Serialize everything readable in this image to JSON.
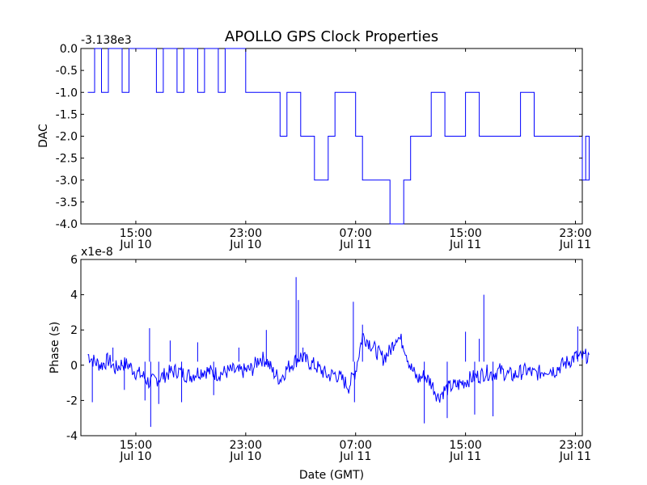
{
  "chart_data": [
    {
      "type": "line",
      "title": "APOLLO GPS Clock Properties",
      "ylabel": "DAC",
      "offset_label": "-3.138e3",
      "ylim": [
        -4.0,
        0.0
      ],
      "yticks": [
        "0.0",
        "-0.5",
        "-1.0",
        "-1.5",
        "-2.0",
        "-2.5",
        "-3.0",
        "-3.5",
        "-4.0"
      ],
      "xticks": [
        {
          "time": "15:00",
          "date": "Jul 10"
        },
        {
          "time": "23:00",
          "date": "Jul 10"
        },
        {
          "time": "07:00",
          "date": "Jul 11"
        },
        {
          "time": "15:00",
          "date": "Jul 11"
        },
        {
          "time": "23:00",
          "date": "Jul 11"
        }
      ],
      "series": [
        {
          "color": "#0000ff",
          "points": [
            [
              "Jul 10 11:30",
              -1.0
            ],
            [
              "Jul 10 12:00",
              0.0
            ],
            [
              "Jul 10 12:30",
              -1.0
            ],
            [
              "Jul 10 13:00",
              0.0
            ],
            [
              "Jul 10 14:00",
              -1.0
            ],
            [
              "Jul 10 14:30",
              0.0
            ],
            [
              "Jul 10 16:30",
              -1.0
            ],
            [
              "Jul 10 17:00",
              0.0
            ],
            [
              "Jul 10 18:00",
              -1.0
            ],
            [
              "Jul 10 18:30",
              0.0
            ],
            [
              "Jul 10 19:30",
              -1.0
            ],
            [
              "Jul 10 20:00",
              0.0
            ],
            [
              "Jul 10 21:00",
              -1.0
            ],
            [
              "Jul 10 21:30",
              0.0
            ],
            [
              "Jul 10 23:00",
              -1.0
            ],
            [
              "Jul 11 01:30",
              -2.0
            ],
            [
              "Jul 11 02:00",
              -1.0
            ],
            [
              "Jul 11 03:00",
              -2.0
            ],
            [
              "Jul 11 04:00",
              -3.0
            ],
            [
              "Jul 11 05:00",
              -2.0
            ],
            [
              "Jul 11 05:30",
              -1.0
            ],
            [
              "Jul 11 07:00",
              -2.0
            ],
            [
              "Jul 11 07:30",
              -3.0
            ],
            [
              "Jul 11 09:30",
              -4.0
            ],
            [
              "Jul 11 10:30",
              -3.0
            ],
            [
              "Jul 11 11:00",
              -2.0
            ],
            [
              "Jul 11 12:30",
              -1.0
            ],
            [
              "Jul 11 13:30",
              -2.0
            ],
            [
              "Jul 11 15:00",
              -1.0
            ],
            [
              "Jul 11 16:00",
              -2.0
            ],
            [
              "Jul 11 19:00",
              -1.0
            ],
            [
              "Jul 11 20:00",
              -2.0
            ],
            [
              "Jul 11 23:30",
              -3.0
            ],
            [
              "Jul 11 23:45",
              -2.0
            ],
            [
              "Jul 12 00:00",
              -3.0
            ]
          ]
        }
      ]
    },
    {
      "type": "line",
      "ylabel": "Phase (s)",
      "xlabel": "Date (GMT)",
      "offset_label": "x1e-8",
      "ylim": [
        -4,
        6
      ],
      "yticks": [
        "6",
        "4",
        "2",
        "0",
        "-2",
        "-4"
      ],
      "xticks": [
        {
          "time": "15:00",
          "date": "Jul 10"
        },
        {
          "time": "23:00",
          "date": "Jul 10"
        },
        {
          "time": "07:00",
          "date": "Jul 11"
        },
        {
          "time": "15:00",
          "date": "Jul 11"
        },
        {
          "time": "23:00",
          "date": "Jul 11"
        }
      ],
      "series": [
        {
          "color": "#0000ff",
          "points": [
            [
              "Jul 10 11:30",
              0.6
            ],
            [
              "Jul 10 12:00",
              0.2
            ],
            [
              "Jul 10 12:30",
              0.0
            ],
            [
              "Jul 10 13:00",
              0.3
            ],
            [
              "Jul 10 13:30",
              -0.2
            ],
            [
              "Jul 10 14:00",
              0.1
            ],
            [
              "Jul 10 14:30",
              0.0
            ],
            [
              "Jul 10 15:00",
              -0.4
            ],
            [
              "Jul 10 15:30",
              -0.6
            ],
            [
              "Jul 10 16:00",
              -1.0
            ],
            [
              "Jul 10 16:30",
              -0.8
            ],
            [
              "Jul 10 17:00",
              -0.6
            ],
            [
              "Jul 10 17:30",
              -0.4
            ],
            [
              "Jul 10 18:00",
              -0.3
            ],
            [
              "Jul 10 18:30",
              -0.5
            ],
            [
              "Jul 10 19:00",
              -0.6
            ],
            [
              "Jul 10 19:30",
              -0.4
            ],
            [
              "Jul 10 20:00",
              -0.3
            ],
            [
              "Jul 10 20:30",
              -0.4
            ],
            [
              "Jul 10 21:00",
              -0.5
            ],
            [
              "Jul 10 21:30",
              -0.4
            ],
            [
              "Jul 10 22:00",
              -0.3
            ],
            [
              "Jul 10 22:30",
              -0.4
            ],
            [
              "Jul 10 23:00",
              -0.3
            ],
            [
              "Jul 10 23:30",
              -0.2
            ],
            [
              "Jul 11 00:00",
              0.4
            ],
            [
              "Jul 11 00:30",
              0.3
            ],
            [
              "Jul 11 01:00",
              -0.4
            ],
            [
              "Jul 11 01:30",
              -0.8
            ],
            [
              "Jul 11 02:00",
              -0.2
            ],
            [
              "Jul 11 02:30",
              0.2
            ],
            [
              "Jul 11 03:00",
              0.5
            ],
            [
              "Jul 11 03:30",
              0.2
            ],
            [
              "Jul 11 04:00",
              0.0
            ],
            [
              "Jul 11 04:30",
              -0.3
            ],
            [
              "Jul 11 05:00",
              -0.6
            ],
            [
              "Jul 11 05:30",
              -0.5
            ],
            [
              "Jul 11 06:00",
              -0.8
            ],
            [
              "Jul 11 06:30",
              -1.2
            ],
            [
              "Jul 11 07:00",
              -0.3
            ],
            [
              "Jul 11 07:30",
              1.7
            ],
            [
              "Jul 11 08:00",
              1.3
            ],
            [
              "Jul 11 08:30",
              0.8
            ],
            [
              "Jul 11 09:00",
              0.4
            ],
            [
              "Jul 11 09:30",
              0.8
            ],
            [
              "Jul 11 10:00",
              1.7
            ],
            [
              "Jul 11 10:30",
              1.2
            ],
            [
              "Jul 11 11:00",
              -0.1
            ],
            [
              "Jul 11 11:30",
              -0.8
            ],
            [
              "Jul 11 12:00",
              -0.6
            ],
            [
              "Jul 11 12:30",
              -1.0
            ],
            [
              "Jul 11 13:00",
              -1.8
            ],
            [
              "Jul 11 13:30",
              -1.4
            ],
            [
              "Jul 11 14:00",
              -1.2
            ],
            [
              "Jul 11 14:30",
              -1.1
            ],
            [
              "Jul 11 15:00",
              -0.9
            ],
            [
              "Jul 11 15:30",
              -0.7
            ],
            [
              "Jul 11 16:00",
              -0.6
            ],
            [
              "Jul 11 16:30",
              -0.4
            ],
            [
              "Jul 11 17:00",
              -0.5
            ],
            [
              "Jul 11 17:30",
              -0.3
            ],
            [
              "Jul 11 18:00",
              -0.5
            ],
            [
              "Jul 11 18:30",
              -0.6
            ],
            [
              "Jul 11 19:00",
              -0.4
            ],
            [
              "Jul 11 19:30",
              -0.3
            ],
            [
              "Jul 11 20:00",
              -0.5
            ],
            [
              "Jul 11 20:30",
              -0.4
            ],
            [
              "Jul 11 21:00",
              -0.2
            ],
            [
              "Jul 11 21:30",
              -0.3
            ],
            [
              "Jul 11 22:00",
              0.0
            ],
            [
              "Jul 11 22:30",
              0.2
            ],
            [
              "Jul 11 23:00",
              0.5
            ],
            [
              "Jul 11 23:30",
              0.4
            ],
            [
              "Jul 12 00:00",
              0.6
            ]
          ],
          "spikes": [
            [
              "Jul 10 11:50",
              -2.1
            ],
            [
              "Jul 10 13:20",
              1.0
            ],
            [
              "Jul 10 14:10",
              -1.4
            ],
            [
              "Jul 10 15:40",
              -2.0
            ],
            [
              "Jul 10 16:00",
              2.1
            ],
            [
              "Jul 10 16:05",
              -3.5
            ],
            [
              "Jul 10 16:40",
              -2.2
            ],
            [
              "Jul 10 17:30",
              1.4
            ],
            [
              "Jul 10 18:20",
              -2.1
            ],
            [
              "Jul 10 19:30",
              1.3
            ],
            [
              "Jul 10 20:40",
              -1.7
            ],
            [
              "Jul 10 22:30",
              1.0
            ],
            [
              "Jul 11 00:30",
              2.0
            ],
            [
              "Jul 11 02:40",
              5.0
            ],
            [
              "Jul 11 02:50",
              3.7
            ],
            [
              "Jul 11 03:10",
              1.0
            ],
            [
              "Jul 11 06:50",
              3.6
            ],
            [
              "Jul 11 06:55",
              -2.1
            ],
            [
              "Jul 11 07:30",
              2.3
            ],
            [
              "Jul 11 12:00",
              -3.3
            ],
            [
              "Jul 11 13:40",
              -3.0
            ],
            [
              "Jul 11 15:00",
              1.9
            ],
            [
              "Jul 11 15:40",
              -2.8
            ],
            [
              "Jul 11 16:00",
              1.5
            ],
            [
              "Jul 11 16:20",
              4.0
            ],
            [
              "Jul 11 17:00",
              -2.9
            ],
            [
              "Jul 11 23:10",
              2.2
            ]
          ]
        }
      ]
    }
  ]
}
